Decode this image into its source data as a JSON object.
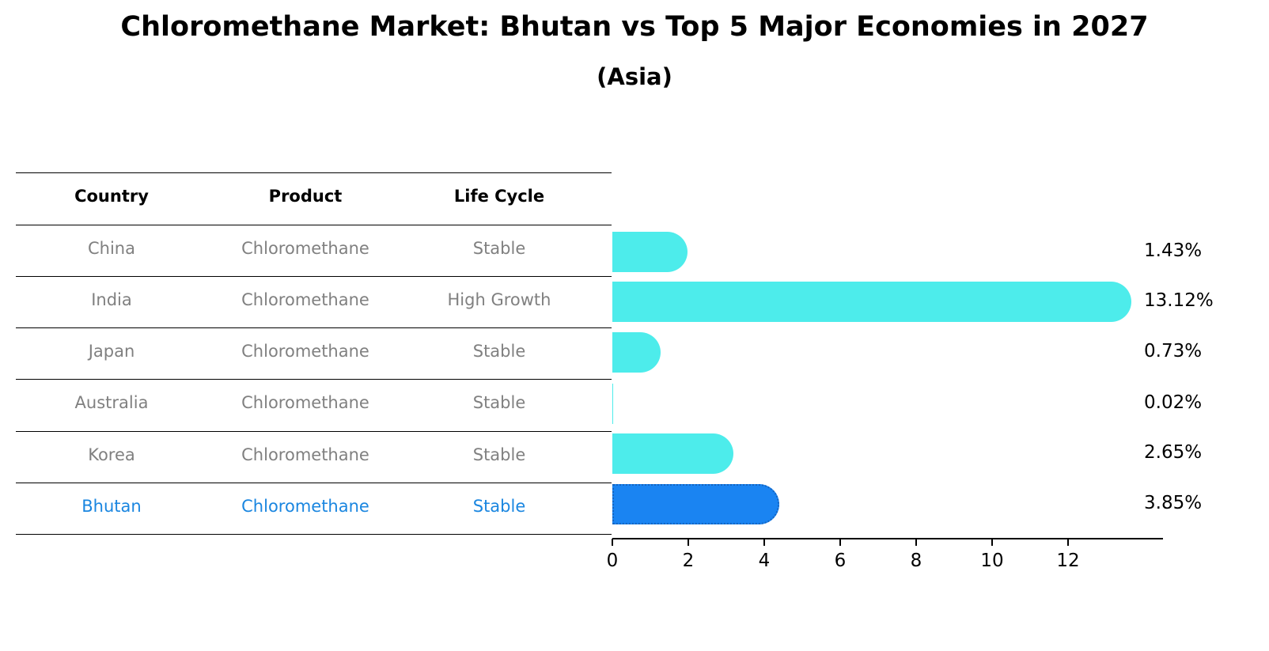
{
  "header": {
    "title": "Chloromethane Market: Bhutan vs Top 5 Major Economies in 2027",
    "subtitle": "(Asia)"
  },
  "table": {
    "columns": [
      "Country",
      "Product",
      "Life Cycle"
    ],
    "rows": [
      {
        "country": "China",
        "product": "Chloromethane",
        "life_cycle": "Stable",
        "highlight": false
      },
      {
        "country": "India",
        "product": "Chloromethane",
        "life_cycle": "High Growth",
        "highlight": false
      },
      {
        "country": "Japan",
        "product": "Chloromethane",
        "life_cycle": "Stable",
        "highlight": false
      },
      {
        "country": "Australia",
        "product": "Chloromethane",
        "life_cycle": "Stable",
        "highlight": false
      },
      {
        "country": "Korea",
        "product": "Chloromethane",
        "life_cycle": "Stable",
        "highlight": false
      },
      {
        "country": "Bhutan",
        "product": "Chloromethane",
        "life_cycle": "Stable",
        "highlight": true
      }
    ]
  },
  "colors": {
    "bar_default": "#4deceb",
    "bar_highlight": "#1a84f2",
    "text_muted": "#808080",
    "text_highlight": "#1a86e0"
  },
  "chart_data": {
    "type": "bar",
    "orientation": "horizontal",
    "title": "Chloromethane Market: Bhutan vs Top 5 Major Economies in 2027",
    "subtitle": "(Asia)",
    "categories": [
      "China",
      "India",
      "Japan",
      "Australia",
      "Korea",
      "Bhutan"
    ],
    "values": [
      1.43,
      13.12,
      0.73,
      0.02,
      2.65,
      3.85
    ],
    "value_labels": [
      "1.43%",
      "13.12%",
      "0.73%",
      "0.02%",
      "2.65%",
      "3.85%"
    ],
    "highlight_category": "Bhutan",
    "xlabel": "",
    "ylabel": "",
    "xlim": [
      0,
      13.8
    ],
    "xticks": [
      0,
      2,
      4,
      6,
      8,
      10,
      12
    ],
    "xtick_labels": [
      "0",
      "2",
      "4",
      "6",
      "8",
      "10",
      "12"
    ],
    "grid": false,
    "legend": null
  }
}
